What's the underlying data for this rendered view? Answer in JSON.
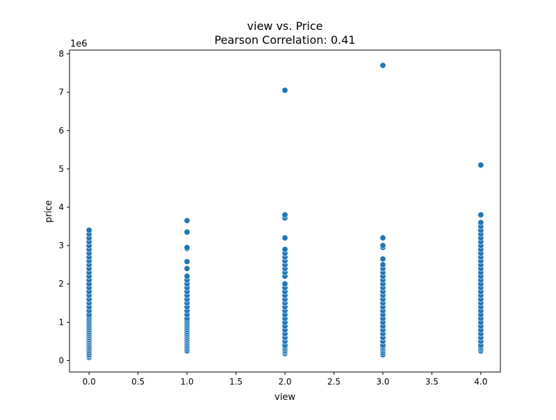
{
  "chart_data": {
    "type": "scatter",
    "title": "view vs. Price",
    "subtitle": "Pearson Correlation: 0.41",
    "xlabel": "view",
    "ylabel": "price",
    "y_scale_label": "1e6",
    "xlim": [
      -0.2,
      4.2
    ],
    "ylim": [
      -0.3,
      8.1
    ],
    "x_ticks": [
      0.0,
      0.5,
      1.0,
      1.5,
      2.0,
      2.5,
      3.0,
      3.5,
      4.0
    ],
    "x_tick_labels": [
      "0.0",
      "0.5",
      "1.0",
      "1.5",
      "2.0",
      "2.5",
      "3.0",
      "3.5",
      "4.0"
    ],
    "y_ticks": [
      0,
      1,
      2,
      3,
      4,
      5,
      6,
      7,
      8
    ],
    "y_tick_labels": [
      "0",
      "1",
      "2",
      "3",
      "4",
      "5",
      "6",
      "7",
      "8"
    ],
    "grid": false,
    "legend": "none",
    "marker_color": "#1f77b4",
    "y_unit_multiplier": 1000000,
    "series": [
      {
        "points": [
          [
            0,
            0.08
          ],
          [
            0,
            0.12
          ],
          [
            0,
            0.15
          ],
          [
            0,
            0.2
          ],
          [
            0,
            0.25
          ],
          [
            0,
            0.3
          ],
          [
            0,
            0.35
          ],
          [
            0,
            0.4
          ],
          [
            0,
            0.45
          ],
          [
            0,
            0.5
          ],
          [
            0,
            0.55
          ],
          [
            0,
            0.6
          ],
          [
            0,
            0.65
          ],
          [
            0,
            0.7
          ],
          [
            0,
            0.75
          ],
          [
            0,
            0.8
          ],
          [
            0,
            0.85
          ],
          [
            0,
            0.9
          ],
          [
            0,
            0.95
          ],
          [
            0,
            1.0
          ],
          [
            0,
            1.05
          ],
          [
            0,
            1.1
          ],
          [
            0,
            1.15
          ],
          [
            0,
            1.2
          ],
          [
            0,
            1.3
          ],
          [
            0,
            1.4
          ],
          [
            0,
            1.5
          ],
          [
            0,
            1.6
          ],
          [
            0,
            1.7
          ],
          [
            0,
            1.8
          ],
          [
            0,
            1.9
          ],
          [
            0,
            2.0
          ],
          [
            0,
            2.1
          ],
          [
            0,
            2.2
          ],
          [
            0,
            2.3
          ],
          [
            0,
            2.4
          ],
          [
            0,
            2.5
          ],
          [
            0,
            2.6
          ],
          [
            0,
            2.7
          ],
          [
            0,
            2.8
          ],
          [
            0,
            2.9
          ],
          [
            0,
            3.0
          ],
          [
            0,
            3.1
          ],
          [
            0,
            3.2
          ],
          [
            0,
            3.3
          ],
          [
            0,
            3.4
          ],
          [
            1,
            0.25
          ],
          [
            1,
            0.3
          ],
          [
            1,
            0.35
          ],
          [
            1,
            0.4
          ],
          [
            1,
            0.45
          ],
          [
            1,
            0.5
          ],
          [
            1,
            0.55
          ],
          [
            1,
            0.6
          ],
          [
            1,
            0.65
          ],
          [
            1,
            0.7
          ],
          [
            1,
            0.75
          ],
          [
            1,
            0.8
          ],
          [
            1,
            0.85
          ],
          [
            1,
            0.9
          ],
          [
            1,
            0.95
          ],
          [
            1,
            1.0
          ],
          [
            1,
            1.05
          ],
          [
            1,
            1.1
          ],
          [
            1,
            1.2
          ],
          [
            1,
            1.3
          ],
          [
            1,
            1.4
          ],
          [
            1,
            1.5
          ],
          [
            1,
            1.6
          ],
          [
            1,
            1.7
          ],
          [
            1,
            1.8
          ],
          [
            1,
            1.9
          ],
          [
            1,
            2.0
          ],
          [
            1,
            2.1
          ],
          [
            1,
            2.2
          ],
          [
            1,
            2.4
          ],
          [
            1,
            2.58
          ],
          [
            1,
            2.92
          ],
          [
            1,
            2.95
          ],
          [
            1,
            3.35
          ],
          [
            1,
            3.65
          ],
          [
            2,
            0.18
          ],
          [
            2,
            0.22
          ],
          [
            2,
            0.25
          ],
          [
            2,
            0.3
          ],
          [
            2,
            0.35
          ],
          [
            2,
            0.4
          ],
          [
            2,
            0.5
          ],
          [
            2,
            0.6
          ],
          [
            2,
            0.7
          ],
          [
            2,
            0.8
          ],
          [
            2,
            0.9
          ],
          [
            2,
            1.0
          ],
          [
            2,
            1.1
          ],
          [
            2,
            1.2
          ],
          [
            2,
            1.3
          ],
          [
            2,
            1.4
          ],
          [
            2,
            1.5
          ],
          [
            2,
            1.6
          ],
          [
            2,
            1.7
          ],
          [
            2,
            1.8
          ],
          [
            2,
            1.9
          ],
          [
            2,
            2.0
          ],
          [
            2,
            2.2
          ],
          [
            2,
            2.3
          ],
          [
            2,
            2.4
          ],
          [
            2,
            2.5
          ],
          [
            2,
            2.6
          ],
          [
            2,
            2.7
          ],
          [
            2,
            2.8
          ],
          [
            2,
            2.9
          ],
          [
            2,
            3.2
          ],
          [
            2,
            3.72
          ],
          [
            2,
            3.8
          ],
          [
            2,
            7.05
          ],
          [
            3,
            0.15
          ],
          [
            3,
            0.2
          ],
          [
            3,
            0.25
          ],
          [
            3,
            0.3
          ],
          [
            3,
            0.35
          ],
          [
            3,
            0.4
          ],
          [
            3,
            0.5
          ],
          [
            3,
            0.6
          ],
          [
            3,
            0.7
          ],
          [
            3,
            0.8
          ],
          [
            3,
            0.9
          ],
          [
            3,
            1.0
          ],
          [
            3,
            1.1
          ],
          [
            3,
            1.2
          ],
          [
            3,
            1.3
          ],
          [
            3,
            1.4
          ],
          [
            3,
            1.5
          ],
          [
            3,
            1.6
          ],
          [
            3,
            1.7
          ],
          [
            3,
            1.8
          ],
          [
            3,
            1.9
          ],
          [
            3,
            2.0
          ],
          [
            3,
            2.1
          ],
          [
            3,
            2.2
          ],
          [
            3,
            2.3
          ],
          [
            3,
            2.4
          ],
          [
            3,
            2.5
          ],
          [
            3,
            2.65
          ],
          [
            3,
            2.95
          ],
          [
            3,
            3.0
          ],
          [
            3,
            3.2
          ],
          [
            3,
            7.7
          ],
          [
            4,
            0.25
          ],
          [
            4,
            0.3
          ],
          [
            4,
            0.35
          ],
          [
            4,
            0.4
          ],
          [
            4,
            0.5
          ],
          [
            4,
            0.6
          ],
          [
            4,
            0.7
          ],
          [
            4,
            0.8
          ],
          [
            4,
            0.9
          ],
          [
            4,
            1.0
          ],
          [
            4,
            1.1
          ],
          [
            4,
            1.2
          ],
          [
            4,
            1.3
          ],
          [
            4,
            1.4
          ],
          [
            4,
            1.5
          ],
          [
            4,
            1.6
          ],
          [
            4,
            1.7
          ],
          [
            4,
            1.8
          ],
          [
            4,
            1.9
          ],
          [
            4,
            2.0
          ],
          [
            4,
            2.1
          ],
          [
            4,
            2.2
          ],
          [
            4,
            2.3
          ],
          [
            4,
            2.4
          ],
          [
            4,
            2.5
          ],
          [
            4,
            2.6
          ],
          [
            4,
            2.7
          ],
          [
            4,
            2.8
          ],
          [
            4,
            2.9
          ],
          [
            4,
            3.0
          ],
          [
            4,
            3.1
          ],
          [
            4,
            3.2
          ],
          [
            4,
            3.3
          ],
          [
            4,
            3.4
          ],
          [
            4,
            3.5
          ],
          [
            4,
            3.6
          ],
          [
            4,
            3.8
          ],
          [
            4,
            5.1
          ]
        ]
      }
    ]
  }
}
